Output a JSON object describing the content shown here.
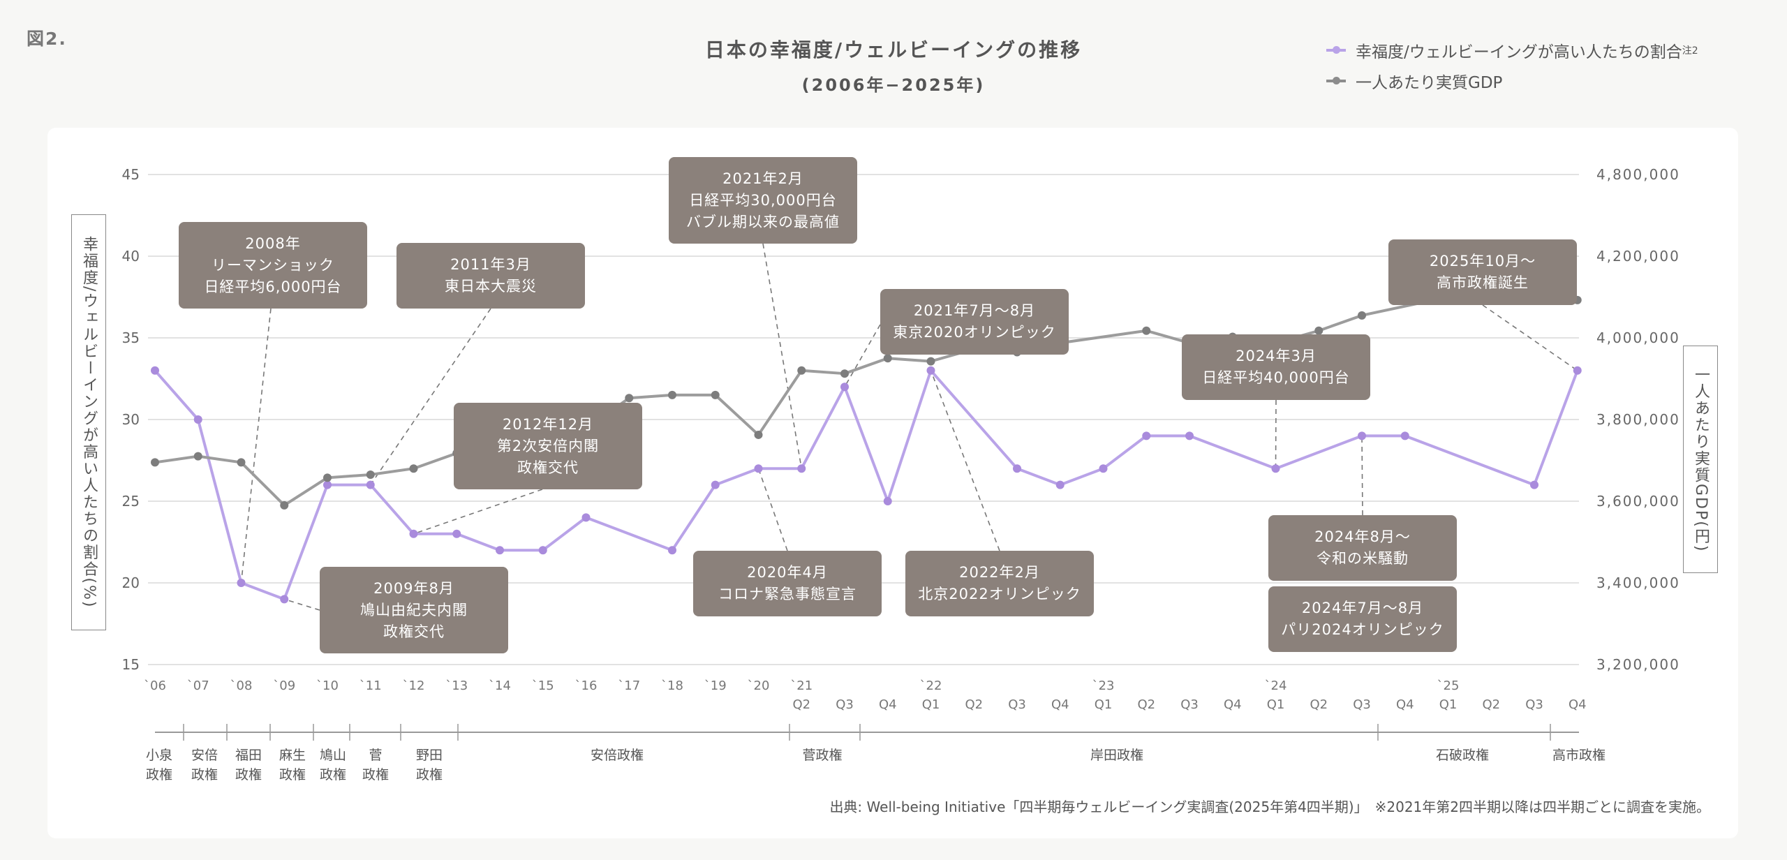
{
  "figure_label": "図2.",
  "title": "日本の幸福度/ウェルビーイングの推移",
  "subtitle": "(2006年−2025年)",
  "legend": [
    {
      "label": "幸福度/ウェルビーイングが高い人たちの割合",
      "sup": "注2",
      "color": "#b9a3e8"
    },
    {
      "label": "一人あたり実質GDP",
      "sup": "",
      "color": "#8c8c8c"
    }
  ],
  "left_axis_label": "幸福度/ウェルビーイングが高い人たちの割合(%)",
  "right_axis_label": "一人あたり実質GDP(円)",
  "source": "出典: Well-being Initiative「四半期毎ウェルビーイング実調査(2025年第4四半期)」　※2021年第2四半期以降は四半期ごとに調査を実施。",
  "chart_data": {
    "type": "line",
    "title": "日本の幸福度/ウェルビーイングの推移",
    "subtitle": "(2006年−2025年)",
    "x_year_labels": [
      "`06",
      "`07",
      "`08",
      "`09",
      "`10",
      "`11",
      "`12",
      "`13",
      "`14",
      "`15",
      "`16",
      "`17",
      "`18",
      "`19",
      "`20",
      "`21",
      "",
      "",
      "`22",
      "",
      "",
      "",
      "`23",
      "",
      "",
      "",
      "`24",
      "",
      "",
      "",
      "`25",
      "",
      "",
      ""
    ],
    "x_quarter_labels": [
      "",
      "",
      "",
      "",
      "",
      "",
      "",
      "",
      "",
      "",
      "",
      "",
      "",
      "",
      "",
      "Q2",
      "Q3",
      "Q4",
      "Q1",
      "Q2",
      "Q3",
      "Q4",
      "Q1",
      "Q2",
      "Q3",
      "Q4",
      "Q1",
      "Q2",
      "Q3",
      "Q4",
      "Q1",
      "Q2",
      "Q3",
      "Q4"
    ],
    "y_left": {
      "label": "幸福度/ウェルビーイングが高い人たちの割合(%)",
      "range": [
        15,
        45
      ],
      "ticks": [
        15,
        20,
        25,
        30,
        35,
        40,
        45
      ]
    },
    "y_right": {
      "label": "一人あたり実質GDP(円)",
      "range": [
        3200000,
        4800000
      ],
      "ticks": [
        3200000,
        3400000,
        3600000,
        3800000,
        4000000,
        4200000,
        4800000
      ],
      "tick_labels": [
        "3,200,000",
        "3,400,000",
        "3,600,000",
        "3,800,000",
        "4,000,000",
        "4,200,000",
        "4,800,000"
      ]
    },
    "grid": true,
    "legend_position": "top-right",
    "series": [
      {
        "name": "幸福度/ウェルビーイングが高い人たちの割合",
        "axis": "left",
        "color": "#b9a3e8",
        "marker_color": "#a98bdc",
        "values": [
          33,
          30,
          20,
          19,
          26,
          26,
          23,
          23,
          22,
          22,
          24,
          null,
          22,
          26,
          27,
          27,
          32,
          25,
          33,
          null,
          27,
          26,
          27,
          29,
          29,
          null,
          27,
          null,
          29,
          29,
          null,
          null,
          26,
          33
        ]
      },
      {
        "name": "一人あたり実質GDP",
        "axis": "right",
        "color": "#9c9c9c",
        "marker_color": "#7d7d7d",
        "values": [
          3860000,
          3880000,
          3860000,
          3720000,
          3810000,
          3820000,
          3840000,
          3890000,
          3900000,
          3940000,
          3970000,
          4070000,
          4080000,
          4080000,
          3950000,
          4160000,
          4150000,
          4200000,
          4190000,
          4230000,
          4220000,
          4250000,
          null,
          4290000,
          4250000,
          4270000,
          4250000,
          4290000,
          4340000,
          null,
          4400000,
          4410000,
          4390000,
          4390000
        ]
      }
    ],
    "annotations": [
      {
        "lines": [
          "2008年",
          "リーマンショック",
          "日経平均6,000円台"
        ],
        "target_index": 2,
        "series": 0
      },
      {
        "lines": [
          "2009年8月",
          "鳩山由紀夫内閣",
          "政権交代"
        ],
        "target_index": 3,
        "series": 0
      },
      {
        "lines": [
          "2011年3月",
          "東日本大震災"
        ],
        "target_index": 5,
        "series": 0
      },
      {
        "lines": [
          "2012年12月",
          "第2次安倍内閣",
          "政権交代"
        ],
        "target_index": 6,
        "series": 0
      },
      {
        "lines": [
          "2021年2月",
          "日経平均30,000円台",
          "バブル期以来の最高値"
        ],
        "target_index": 15,
        "series": 0
      },
      {
        "lines": [
          "2020年4月",
          "コロナ緊急事態宣言"
        ],
        "target_index": 14,
        "series": 0
      },
      {
        "lines": [
          "2021年7月〜8月",
          "東京2020オリンピック"
        ],
        "target_index": 16,
        "series": 0
      },
      {
        "lines": [
          "2022年2月",
          "北京2022オリンピック"
        ],
        "target_index": 18,
        "series": 0
      },
      {
        "lines": [
          "2024年3月",
          "日経平均40,000円台"
        ],
        "target_index": 26,
        "series": 0
      },
      {
        "lines": [
          "2024年8月〜",
          "令和の米騒動"
        ],
        "target_index": 28,
        "series": 0
      },
      {
        "lines": [
          "2024年7月〜8月",
          "パリ2024オリンピック"
        ],
        "target_index": 28,
        "series": 0
      },
      {
        "lines": [
          "2025年10月〜",
          "高市政権誕生"
        ],
        "target_index": 33,
        "series": 0
      }
    ],
    "eras": [
      {
        "name": "小泉\n政権"
      },
      {
        "name": "安倍\n政権"
      },
      {
        "name": "福田\n政権"
      },
      {
        "name": "麻生\n政権"
      },
      {
        "name": "鳩山\n政権"
      },
      {
        "name": "菅\n政権"
      },
      {
        "name": "野田\n政権"
      },
      {
        "name": "安倍政権"
      },
      {
        "name": "菅政権"
      },
      {
        "name": "岸田政権"
      },
      {
        "name": "石破政権"
      },
      {
        "name": "高市政権"
      }
    ]
  }
}
